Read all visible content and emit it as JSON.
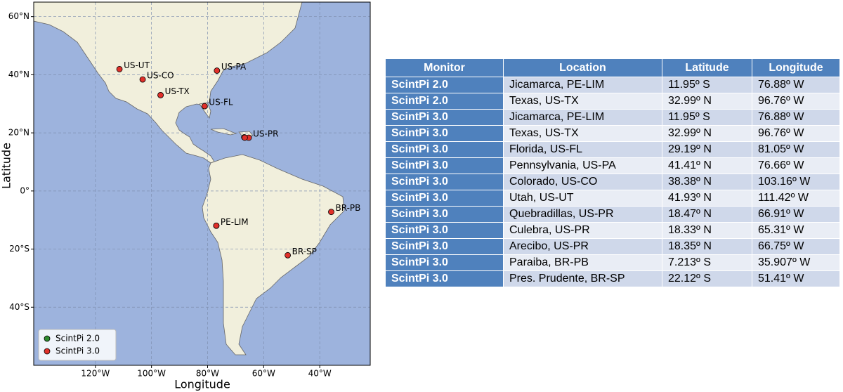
{
  "chart_data": {
    "type": "scatter",
    "x_label": "Longitude",
    "y_label": "Latitude",
    "xlim": [
      -142,
      -22
    ],
    "ylim": [
      -60,
      65
    ],
    "xticks": [
      {
        "value": -120,
        "label": "120°W"
      },
      {
        "value": -100,
        "label": "100°W"
      },
      {
        "value": -80,
        "label": "80°W"
      },
      {
        "value": -60,
        "label": "60°W"
      },
      {
        "value": -40,
        "label": "40°W"
      }
    ],
    "yticks": [
      {
        "value": 60,
        "label": "60°N"
      },
      {
        "value": 40,
        "label": "40°N"
      },
      {
        "value": 20,
        "label": "20°N"
      },
      {
        "value": 0,
        "label": "0°"
      },
      {
        "value": -20,
        "label": "20°S"
      },
      {
        "value": -40,
        "label": "40°S"
      }
    ],
    "grid": true,
    "legend": "lower left",
    "series": [
      {
        "name": "ScintPi 2.0",
        "color": "#2e8b2e",
        "x": [
          -76.88,
          -96.76
        ],
        "values": [
          -11.95,
          32.99
        ],
        "labels": [
          null,
          null
        ]
      },
      {
        "name": "ScintPi 3.0",
        "color": "#e0302a",
        "x": [
          -76.88,
          -96.76,
          -81.05,
          -76.66,
          -103.16,
          -111.42,
          -66.91,
          -65.31,
          -66.75,
          -35.907,
          -51.41
        ],
        "values": [
          -11.95,
          32.99,
          29.19,
          41.41,
          38.38,
          41.93,
          18.47,
          18.33,
          18.35,
          -7.213,
          -22.12
        ],
        "labels": [
          "PE-LIM",
          "US-TX",
          "US-FL",
          "US-PA",
          "US-CO",
          "US-UT",
          null,
          "US-PR",
          null,
          "BR-PB",
          "BR-SP"
        ]
      }
    ]
  },
  "table": {
    "header": [
      "Monitor",
      "Location",
      "Latitude",
      "Longitude"
    ],
    "rows": [
      [
        "ScintPi 2.0",
        "Jicamarca, PE-LIM",
        "11.95º S",
        "76.88º W"
      ],
      [
        "ScintPi 2.0",
        "Texas, US-TX",
        "32.99º N",
        "96.76º W"
      ],
      [
        "ScintPi 3.0",
        "Jicamarca, PE-LIM",
        "11.95º S",
        "76.88º W"
      ],
      [
        "ScintPi 3.0",
        "Texas, US-TX",
        "32.99º N",
        "96.76º W"
      ],
      [
        "ScintPi 3.0",
        "Florida, US-FL",
        "29.19º N",
        "81.05º W"
      ],
      [
        "ScintPi 3.0",
        "Pennsylvania, US-PA",
        "41.41º N",
        "76.66º W"
      ],
      [
        "ScintPi 3.0",
        "Colorado, US-CO",
        "38.38º N",
        "103.16º W"
      ],
      [
        "ScintPi 3.0",
        "Utah, US-UT",
        "41.93º N",
        "111.42º W"
      ],
      [
        "ScintPi 3.0",
        "Quebradillas, US-PR",
        "18.47º N",
        "66.91º W"
      ],
      [
        "ScintPi 3.0",
        "Culebra, US-PR",
        "18.33º N",
        "65.31º W"
      ],
      [
        "ScintPi 3.0",
        "Arecibo, US-PR",
        "18.35º N",
        "66.75º W"
      ],
      [
        "ScintPi 3.0",
        "Paraiba, BR-PB",
        "7.213º S",
        "35.907º W"
      ],
      [
        "ScintPi 3.0",
        "Pres. Prudente, BR-SP",
        "22.12º S",
        "51.41º W"
      ]
    ]
  }
}
